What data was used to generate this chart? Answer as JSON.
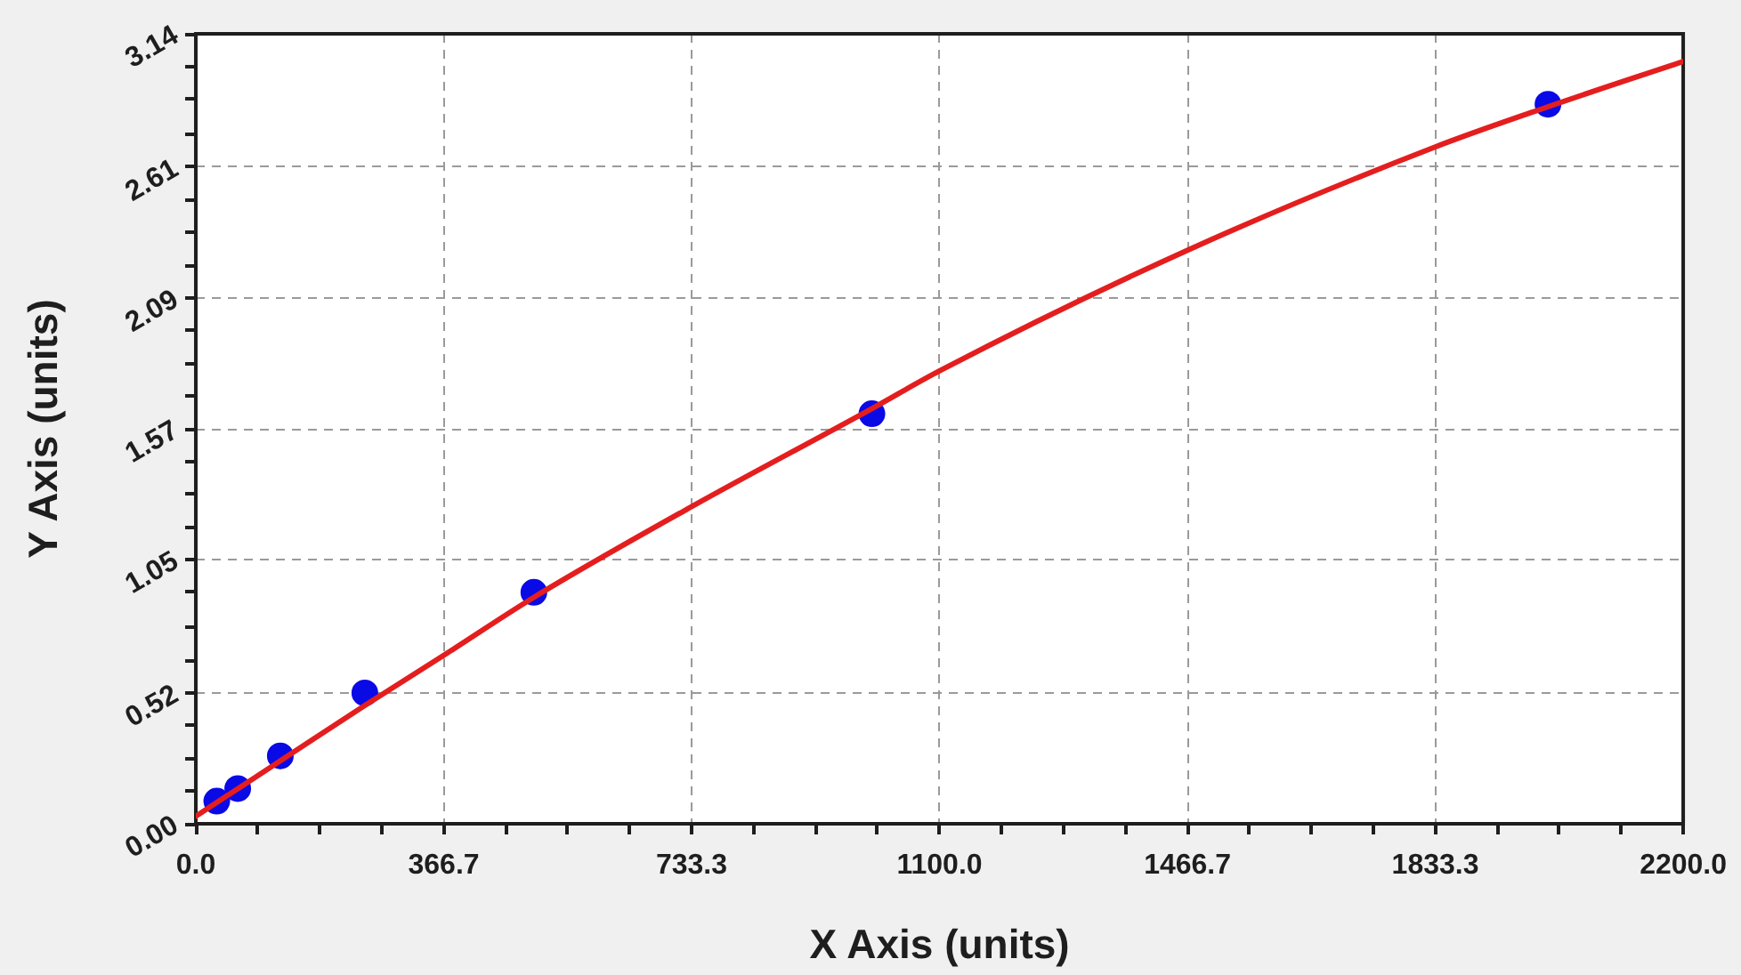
{
  "chart_data": {
    "type": "scatter",
    "xlabel": "X Axis (units)",
    "ylabel": "Y Axis (units)",
    "xlim": [
      0,
      2200
    ],
    "ylim": [
      0,
      3.14
    ],
    "xticks": [
      {
        "value": 0,
        "label": "0.0"
      },
      {
        "value": 91.7,
        "label": null
      },
      {
        "value": 183.3,
        "label": null
      },
      {
        "value": 275,
        "label": null
      },
      366.7,
      {
        "value": 458.3,
        "label": null
      },
      {
        "value": 550,
        "label": null
      },
      {
        "value": 641.7,
        "label": null
      },
      733.3,
      {
        "value": 825,
        "label": null
      },
      {
        "value": 916.7,
        "label": null
      },
      {
        "value": 1008.3,
        "label": null
      },
      {
        "value": 1100,
        "label": "1100.0"
      },
      {
        "value": 1191.7,
        "label": null
      },
      {
        "value": 1283.3,
        "label": null
      },
      {
        "value": 1375,
        "label": null
      },
      1466.7,
      {
        "value": 1558.3,
        "label": null
      },
      {
        "value": 1650,
        "label": null
      },
      {
        "value": 1741.7,
        "label": null
      },
      1833.3,
      {
        "value": 1925,
        "label": null
      },
      {
        "value": 2016.7,
        "label": null
      },
      {
        "value": 2108.3,
        "label": null
      },
      {
        "value": 2200,
        "label": "2200.0"
      }
    ],
    "yticks": [
      {
        "value": 0,
        "label": "0.00"
      },
      {
        "value": 0.13,
        "label": null
      },
      {
        "value": 0.26,
        "label": null
      },
      {
        "value": 0.39,
        "label": null
      },
      0.52,
      {
        "value": 0.65,
        "label": null
      },
      {
        "value": 0.78,
        "label": null
      },
      {
        "value": 0.92,
        "label": null
      },
      1.05,
      {
        "value": 1.18,
        "label": null
      },
      {
        "value": 1.31,
        "label": null
      },
      {
        "value": 1.44,
        "label": null
      },
      1.57,
      {
        "value": 1.7,
        "label": null
      },
      {
        "value": 1.83,
        "label": null
      },
      {
        "value": 1.96,
        "label": null
      },
      2.09,
      {
        "value": 2.22,
        "label": null
      },
      {
        "value": 2.35,
        "label": null
      },
      {
        "value": 2.48,
        "label": null
      },
      2.61,
      {
        "value": 2.74,
        "label": null
      },
      {
        "value": 2.88,
        "label": null
      },
      {
        "value": 3.01,
        "label": null
      },
      3.14
    ],
    "grid": true,
    "series": [
      {
        "type": "line",
        "color": "#e41e1e",
        "x": [
          0,
          125,
          250,
          367,
          500,
          733,
          1000,
          1100,
          1467,
          1833,
          2000,
          2200
        ],
        "values": [
          0.03,
          0.25,
          0.47,
          0.67,
          0.9,
          1.26,
          1.65,
          1.8,
          2.28,
          2.69,
          2.85,
          3.03
        ],
        "marker": "none",
        "line_style": "solid"
      },
      {
        "color": "#0a0ae6",
        "x": [
          31,
          62,
          125,
          250,
          500,
          1000,
          2000
        ],
        "values": [
          0.09,
          0.14,
          0.27,
          0.52,
          0.92,
          1.63,
          2.86
        ],
        "marker": "circle"
      }
    ]
  }
}
